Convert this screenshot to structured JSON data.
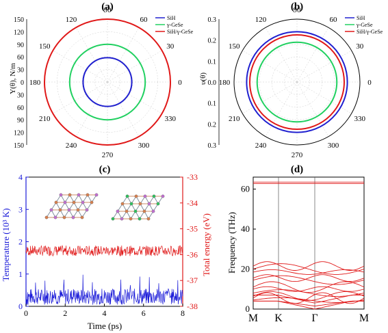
{
  "chart_data": [
    {
      "panel": "(a)",
      "type": "polar",
      "ylabel": "Y(θ), N/m",
      "r_ticks": [
        150,
        120,
        90,
        60,
        30,
        0
      ],
      "r_tick_labels_lower": [
        0,
        30,
        60,
        90,
        120,
        150
      ],
      "angle_ticks": [
        0,
        30,
        60,
        90,
        120,
        150,
        180,
        210,
        240,
        270,
        300,
        330
      ],
      "rlim": [
        0,
        150
      ],
      "legend_position": "top-right",
      "series": [
        {
          "name": "SiH",
          "color": "#2020d0",
          "r": 58
        },
        {
          "name": "γ-GeSe",
          "color": "#20d060",
          "r": 90
        },
        {
          "name": "SiH/γ-GeSe",
          "color": "#e01818",
          "r": 150
        }
      ]
    },
    {
      "panel": "(b)",
      "type": "polar",
      "ylabel": "υ(θ)",
      "r_ticks": [
        0.3,
        0.2,
        0.1,
        0.0
      ],
      "r_tick_labels": [
        "0.3",
        "0.2",
        "0.1",
        "0.0",
        "0.1",
        "0.2",
        "0.3"
      ],
      "angle_ticks": [
        0,
        30,
        60,
        90,
        120,
        150,
        180,
        210,
        240,
        270,
        300,
        330
      ],
      "rlim": [
        0,
        0.3
      ],
      "legend_position": "top-right",
      "series": [
        {
          "name": "SiH",
          "color": "#2020d0",
          "r": 0.24
        },
        {
          "name": "γ-GeSe",
          "color": "#20d060",
          "r": 0.19
        },
        {
          "name": "SiH/γ-GeSe",
          "color": "#e01818",
          "r": 0.225
        }
      ]
    },
    {
      "panel": "(c)",
      "type": "line",
      "xlabel": "Time (ps)",
      "ylabel_left": "Temperature (10³ K)",
      "ylabel_right": "Total energy (eV)",
      "xlim": [
        0,
        8
      ],
      "ylim_left": [
        0,
        4
      ],
      "ylim_right": [
        -38,
        -33
      ],
      "x_ticks": [
        0,
        2,
        4,
        6,
        8
      ],
      "y_ticks_left": [
        0,
        1,
        2,
        3,
        4
      ],
      "y_ticks_right": [
        -38,
        -37,
        -36,
        -35,
        -34,
        -33
      ],
      "series": [
        {
          "name": "Temperature",
          "color": "#1a1ad8",
          "axis": "left",
          "mean": 0.3,
          "spread": 0.25
        },
        {
          "name": "Total energy",
          "color": "#e01818",
          "axis": "right",
          "mean": -35.85,
          "spread": 0.2
        }
      ]
    },
    {
      "panel": "(d)",
      "type": "line",
      "ylabel": "Frequency (THz)",
      "x_ticks": [
        "M",
        "K",
        "Γ",
        "M"
      ],
      "ylim": [
        0,
        66
      ],
      "y_ticks": [
        0,
        20,
        40,
        60
      ],
      "color": "#e01818",
      "bands_approx": [
        63.5,
        62.8,
        21.5,
        20.0,
        18.5,
        15.5,
        14.5,
        11.0,
        10.0,
        8.0,
        6.5,
        5.5,
        4.5,
        3.0,
        1.5,
        0
      ]
    }
  ]
}
